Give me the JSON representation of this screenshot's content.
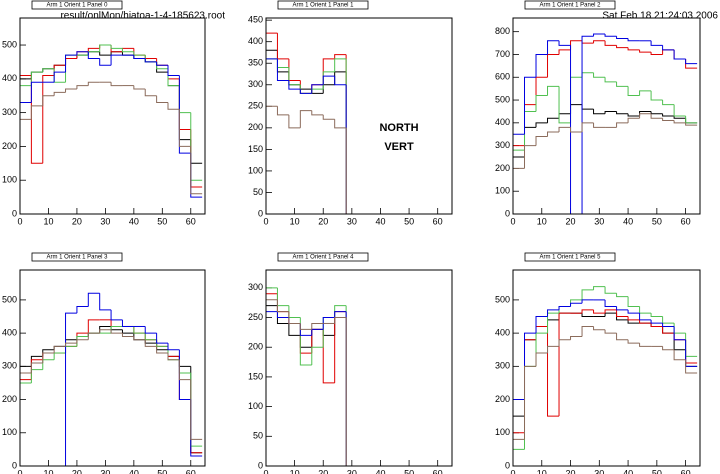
{
  "header": {
    "file": "result/onlMon/hiatoa-1-4-185623.root",
    "timestamp": "Sat Feb 18 21:24:03 2006"
  },
  "chart_data": [
    {
      "type": "histogram",
      "title": "Arm 1 Orient 1 Panel 0",
      "bins": [
        0,
        4,
        8,
        12,
        16,
        20,
        24,
        28,
        32,
        36,
        40,
        44,
        48,
        52,
        56,
        60,
        64
      ],
      "xlim": [
        0,
        65
      ],
      "xticks": [
        0,
        10,
        20,
        30,
        40,
        50,
        60
      ],
      "ylim": [
        0,
        580
      ],
      "yticks": [
        0,
        100,
        200,
        300,
        400,
        500
      ],
      "series": [
        {
          "color": "#000000",
          "values": [
            400,
            420,
            430,
            440,
            460,
            470,
            480,
            470,
            480,
            470,
            460,
            450,
            420,
            380,
            220,
            150
          ]
        },
        {
          "color": "#e00000",
          "values": [
            410,
            150,
            410,
            440,
            460,
            480,
            490,
            500,
            480,
            490,
            470,
            460,
            440,
            400,
            250,
            80
          ]
        },
        {
          "color": "#50c050",
          "values": [
            380,
            420,
            430,
            390,
            470,
            470,
            480,
            500,
            490,
            480,
            470,
            450,
            430,
            380,
            300,
            100
          ]
        },
        {
          "color": "#0000e0",
          "values": [
            330,
            390,
            390,
            420,
            470,
            480,
            460,
            440,
            470,
            470,
            460,
            450,
            440,
            410,
            180,
            50
          ]
        },
        {
          "color": "#8b6b5b",
          "values": [
            280,
            320,
            350,
            360,
            370,
            380,
            390,
            390,
            380,
            380,
            370,
            350,
            330,
            310,
            200,
            60
          ]
        }
      ]
    },
    {
      "type": "histogram",
      "title": "Arm 1 Orient 1 Panel 1",
      "annotations": [
        "NORTH",
        "VERT"
      ],
      "bins": [
        0,
        4,
        8,
        12,
        16,
        20,
        24,
        28,
        32,
        36,
        40,
        44,
        48,
        52,
        56,
        60,
        64
      ],
      "xlim": [
        0,
        65
      ],
      "xticks": [
        0,
        10,
        20,
        30,
        40,
        50,
        60
      ],
      "ylim": [
        0,
        455
      ],
      "yticks": [
        0,
        50,
        100,
        150,
        200,
        250,
        300,
        350,
        400,
        450
      ],
      "series": [
        {
          "color": "#000000",
          "values": [
            380,
            330,
            300,
            290,
            280,
            300,
            330,
            0,
            0,
            0,
            0,
            0,
            0,
            0,
            0,
            0
          ]
        },
        {
          "color": "#e00000",
          "values": [
            420,
            360,
            310,
            280,
            300,
            360,
            370,
            0,
            0,
            0,
            0,
            0,
            0,
            0,
            0,
            0
          ]
        },
        {
          "color": "#50c050",
          "values": [
            360,
            340,
            300,
            280,
            290,
            330,
            360,
            0,
            0,
            0,
            0,
            0,
            0,
            0,
            0,
            0
          ]
        },
        {
          "color": "#0000e0",
          "values": [
            360,
            310,
            290,
            280,
            300,
            320,
            300,
            0,
            0,
            0,
            0,
            0,
            0,
            0,
            0,
            0
          ]
        },
        {
          "color": "#8b6b5b",
          "values": [
            250,
            230,
            200,
            240,
            230,
            220,
            200,
            0,
            0,
            0,
            0,
            0,
            0,
            0,
            0,
            0
          ]
        }
      ]
    },
    {
      "type": "histogram",
      "title": "Arm 1 Orient 1 Panel 2",
      "bins": [
        0,
        4,
        8,
        12,
        16,
        20,
        24,
        28,
        32,
        36,
        40,
        44,
        48,
        52,
        56,
        60,
        64
      ],
      "xlim": [
        0,
        65
      ],
      "xticks": [
        0,
        10,
        20,
        30,
        40,
        50,
        60
      ],
      "ylim": [
        0,
        860
      ],
      "yticks": [
        0,
        100,
        200,
        300,
        400,
        500,
        600,
        700,
        800
      ],
      "series": [
        {
          "color": "#000000",
          "values": [
            250,
            380,
            400,
            420,
            440,
            480,
            460,
            440,
            450,
            440,
            430,
            450,
            440,
            430,
            420,
            400
          ]
        },
        {
          "color": "#e00000",
          "values": [
            300,
            480,
            600,
            700,
            720,
            760,
            750,
            760,
            740,
            730,
            720,
            710,
            700,
            720,
            680,
            640
          ]
        },
        {
          "color": "#50c050",
          "values": [
            280,
            450,
            520,
            560,
            400,
            600,
            620,
            600,
            580,
            560,
            520,
            540,
            500,
            480,
            430,
            400
          ]
        },
        {
          "color": "#0000e0",
          "values": [
            350,
            600,
            700,
            760,
            740,
            0,
            780,
            790,
            780,
            770,
            760,
            760,
            740,
            720,
            680,
            660
          ]
        },
        {
          "color": "#8b6b5b",
          "values": [
            200,
            300,
            340,
            360,
            380,
            360,
            400,
            380,
            380,
            400,
            420,
            440,
            420,
            410,
            400,
            390
          ]
        }
      ]
    },
    {
      "type": "histogram",
      "title": "Arm 1 Orient 1 Panel 3",
      "bins": [
        0,
        4,
        8,
        12,
        16,
        20,
        24,
        28,
        32,
        36,
        40,
        44,
        48,
        52,
        56,
        60,
        64
      ],
      "xlim": [
        0,
        65
      ],
      "xticks": [
        0,
        10,
        20,
        30,
        40,
        50,
        60
      ],
      "ylim": [
        0,
        590
      ],
      "yticks": [
        0,
        100,
        200,
        300,
        400,
        500
      ],
      "series": [
        {
          "color": "#000000",
          "values": [
            300,
            330,
            350,
            360,
            380,
            390,
            400,
            420,
            410,
            400,
            380,
            370,
            350,
            330,
            300,
            40
          ]
        },
        {
          "color": "#e00000",
          "values": [
            260,
            320,
            340,
            340,
            360,
            400,
            440,
            440,
            420,
            420,
            400,
            380,
            360,
            330,
            200,
            40
          ]
        },
        {
          "color": "#50c050",
          "values": [
            250,
            290,
            320,
            340,
            360,
            390,
            400,
            400,
            420,
            420,
            400,
            380,
            360,
            320,
            280,
            60
          ]
        },
        {
          "color": "#0000e0",
          "values": [
            0,
            0,
            0,
            0,
            460,
            480,
            520,
            470,
            440,
            420,
            420,
            400,
            370,
            350,
            200,
            30
          ]
        },
        {
          "color": "#8b6b5b",
          "values": [
            280,
            310,
            340,
            360,
            370,
            380,
            400,
            410,
            400,
            390,
            380,
            360,
            340,
            320,
            260,
            80
          ]
        }
      ]
    },
    {
      "type": "histogram",
      "title": "Arm 1 Orient 1 Panel 4",
      "bins": [
        0,
        4,
        8,
        12,
        16,
        20,
        24,
        28,
        32,
        36,
        40,
        44,
        48,
        52,
        56,
        60,
        64
      ],
      "xlim": [
        0,
        65
      ],
      "xticks": [
        0,
        10,
        20,
        30,
        40,
        50,
        60
      ],
      "ylim": [
        0,
        330
      ],
      "yticks": [
        0,
        50,
        100,
        150,
        200,
        250,
        300
      ],
      "series": [
        {
          "color": "#000000",
          "values": [
            270,
            240,
            220,
            200,
            230,
            220,
            250,
            0,
            0,
            0,
            0,
            0,
            0,
            0,
            0,
            0
          ]
        },
        {
          "color": "#e00000",
          "values": [
            290,
            260,
            240,
            190,
            230,
            140,
            260,
            0,
            0,
            0,
            0,
            0,
            0,
            0,
            0,
            0
          ]
        },
        {
          "color": "#50c050",
          "values": [
            300,
            270,
            250,
            170,
            200,
            250,
            270,
            0,
            0,
            0,
            0,
            0,
            0,
            0,
            0,
            0
          ]
        },
        {
          "color": "#0000e0",
          "values": [
            260,
            250,
            240,
            220,
            230,
            250,
            260,
            0,
            0,
            0,
            0,
            0,
            0,
            0,
            0,
            0
          ]
        },
        {
          "color": "#8b6b5b",
          "values": [
            280,
            260,
            240,
            230,
            240,
            240,
            250,
            0,
            0,
            0,
            0,
            0,
            0,
            0,
            0,
            0
          ]
        }
      ]
    },
    {
      "type": "histogram",
      "title": "Arm 1 Orient 1 Panel 5",
      "bins": [
        0,
        4,
        8,
        12,
        16,
        20,
        24,
        28,
        32,
        36,
        40,
        44,
        48,
        52,
        56,
        60,
        64
      ],
      "xlim": [
        0,
        65
      ],
      "xticks": [
        0,
        10,
        20,
        30,
        40,
        50,
        60
      ],
      "ylim": [
        0,
        590
      ],
      "yticks": [
        0,
        100,
        200,
        300,
        400,
        500
      ],
      "series": [
        {
          "color": "#000000",
          "values": [
            150,
            380,
            420,
            440,
            460,
            460,
            450,
            450,
            460,
            440,
            430,
            430,
            420,
            400,
            350,
            300
          ]
        },
        {
          "color": "#e00000",
          "values": [
            100,
            380,
            420,
            150,
            460,
            460,
            470,
            460,
            470,
            450,
            440,
            430,
            420,
            400,
            380,
            310
          ]
        },
        {
          "color": "#50c050",
          "values": [
            50,
            300,
            400,
            460,
            480,
            500,
            530,
            540,
            520,
            510,
            480,
            460,
            450,
            430,
            400,
            330
          ]
        },
        {
          "color": "#0000e0",
          "values": [
            200,
            400,
            450,
            470,
            480,
            490,
            500,
            500,
            480,
            470,
            460,
            440,
            430,
            420,
            380,
            300
          ]
        },
        {
          "color": "#8b6b5b",
          "values": [
            80,
            300,
            340,
            360,
            380,
            390,
            420,
            410,
            400,
            380,
            370,
            360,
            360,
            350,
            320,
            280
          ]
        }
      ]
    }
  ]
}
